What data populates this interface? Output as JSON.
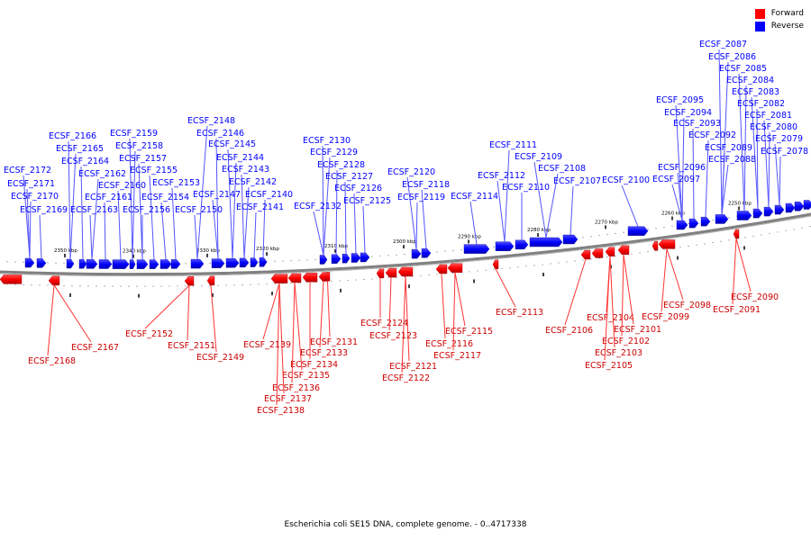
{
  "caption": "Escherichia coli SE15 DNA, complete genome. - 0..4717338",
  "legend": [
    {
      "label": "Forward",
      "color": "#ff0000"
    },
    {
      "label": "Reverse",
      "color": "#0000ff"
    }
  ],
  "colors": {
    "forward": "#ff0000",
    "reverse": "#0000ff",
    "backbone": "#808080"
  },
  "scale_labels": [
    "2350 kbp",
    "2340 kbp",
    "2330 kbp",
    "2320 kbp",
    "2310 kbp",
    "2300 kbp",
    "2290 kbp",
    "2280 kbp",
    "2270 kbp",
    "2260 kbp",
    "2250 kbp"
  ],
  "reverse_genes": [
    "ECSF_2087",
    "ECSF_2086",
    "ECSF_2085",
    "ECSF_2084",
    "ECSF_2083",
    "ECSF_2082",
    "ECSF_2081",
    "ECSF_2080",
    "ECSF_2079",
    "ECSF_2078",
    "ECSF_2095",
    "ECSF_2094",
    "ECSF_2093",
    "ECSF_2092",
    "ECSF_2089",
    "ECSF_2088",
    "ECSF_2096",
    "ECSF_2097",
    "ECSF_2100",
    "ECSF_2111",
    "ECSF_2109",
    "ECSF_2108",
    "ECSF_2107",
    "ECSF_2112",
    "ECSF_2110",
    "ECSF_2114",
    "ECSF_2120",
    "ECSF_2118",
    "ECSF_2119",
    "ECSF_2130",
    "ECSF_2129",
    "ECSF_2128",
    "ECSF_2127",
    "ECSF_2126",
    "ECSF_2125",
    "ECSF_2132",
    "ECSF_2148",
    "ECSF_2146",
    "ECSF_2145",
    "ECSF_2144",
    "ECSF_2143",
    "ECSF_2142",
    "ECSF_2140",
    "ECSF_2141",
    "ECSF_2147",
    "ECSF_2150",
    "ECSF_2153",
    "ECSF_2159",
    "ECSF_2158",
    "ECSF_2157",
    "ECSF_2155",
    "ECSF_2154",
    "ECSF_2156",
    "ECSF_2160",
    "ECSF_2161",
    "ECSF_2166",
    "ECSF_2165",
    "ECSF_2164",
    "ECSF_2162",
    "ECSF_2163",
    "ECSF_2172",
    "ECSF_2171",
    "ECSF_2170",
    "ECSF_2169"
  ],
  "forward_genes": [
    "ECSF_2090",
    "ECSF_2091",
    "ECSF_2098",
    "ECSF_2099",
    "ECSF_2104",
    "ECSF_2101",
    "ECSF_2102",
    "ECSF_2103",
    "ECSF_2105",
    "ECSF_2106",
    "ECSF_2113",
    "ECSF_2115",
    "ECSF_2116",
    "ECSF_2117",
    "ECSF_2121",
    "ECSF_2122",
    "ECSF_2124",
    "ECSF_2123",
    "ECSF_2131",
    "ECSF_2133",
    "ECSF_2134",
    "ECSF_2135",
    "ECSF_2136",
    "ECSF_2137",
    "ECSF_2138",
    "ECSF_2139",
    "ECSF_2149",
    "ECSF_2151",
    "ECSF_2152",
    "ECSF_2167",
    "ECSF_2168"
  ]
}
